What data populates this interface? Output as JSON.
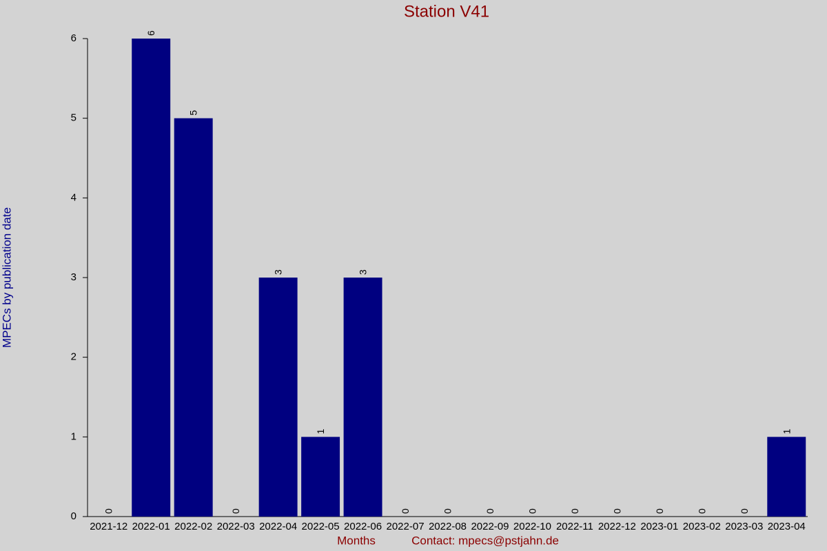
{
  "chart_data": {
    "type": "bar",
    "title": "Station V41",
    "x_label": "Months",
    "y_label": "MPECs by publication date",
    "contact": "Contact: mpecs@pstjahn.de",
    "categories": [
      "2021-12",
      "2022-01",
      "2022-02",
      "2022-03",
      "2022-04",
      "2022-05",
      "2022-06",
      "2022-07",
      "2022-08",
      "2022-09",
      "2022-10",
      "2022-11",
      "2022-12",
      "2023-01",
      "2023-02",
      "2023-03",
      "2023-04"
    ],
    "values": [
      0,
      6,
      5,
      0,
      3,
      1,
      3,
      0,
      0,
      0,
      0,
      0,
      0,
      0,
      0,
      0,
      1
    ],
    "color": "#000080",
    "ylim": [
      0,
      6
    ],
    "yticks": [
      0,
      1,
      2,
      3,
      4,
      5,
      6
    ],
    "grid": false
  }
}
